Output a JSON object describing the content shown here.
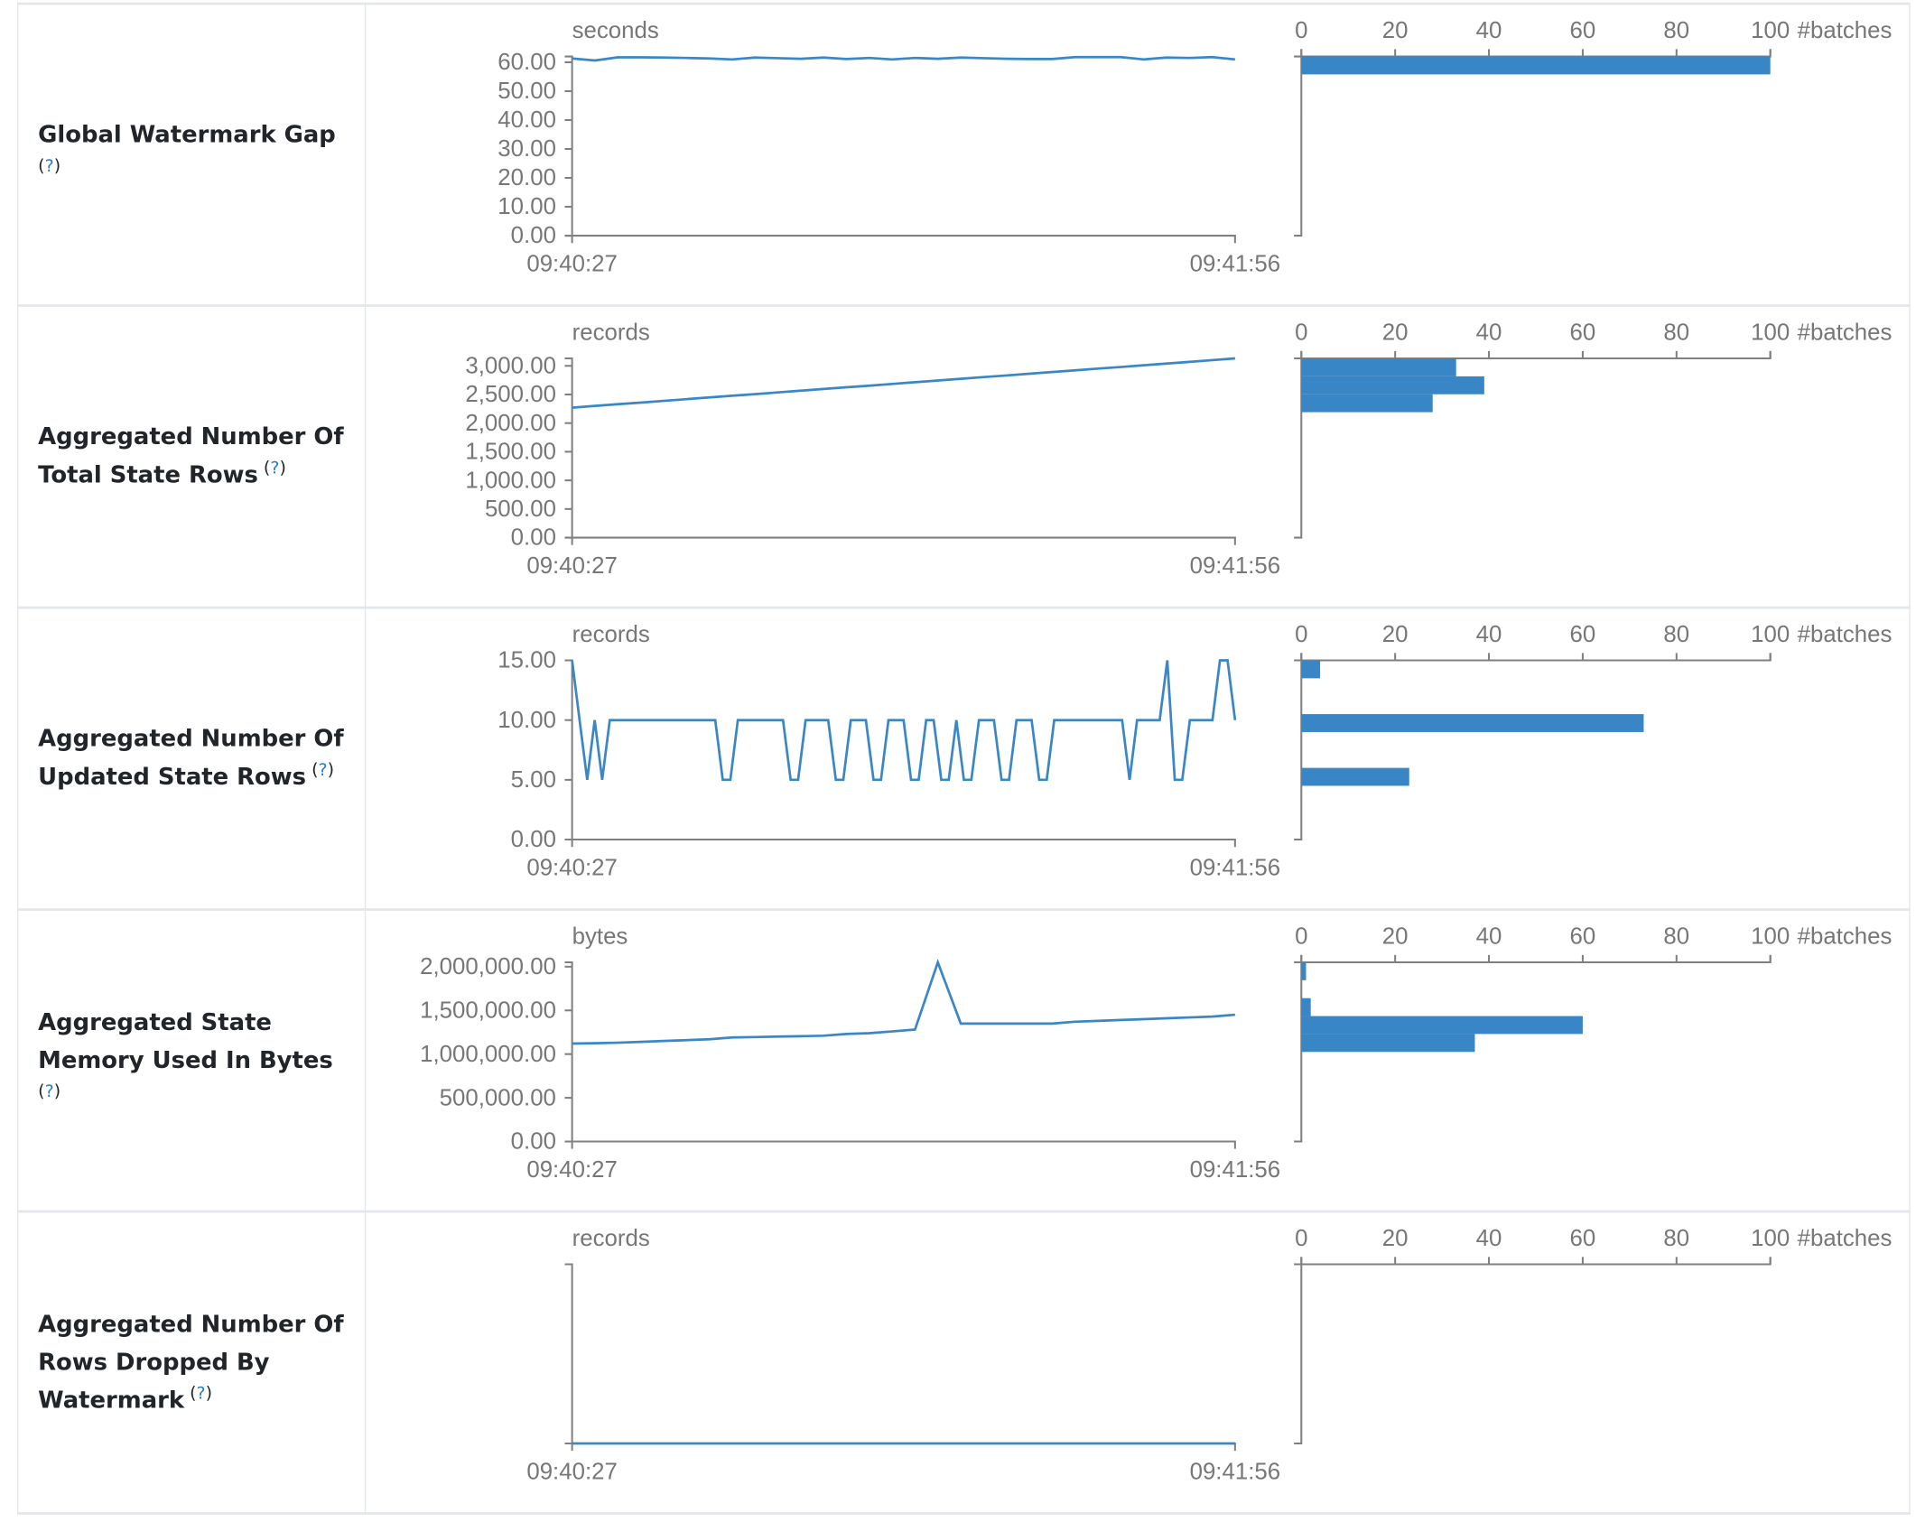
{
  "colors": {
    "line": "#3a87c8",
    "bar": "#3886c6",
    "axis": "#808080",
    "text": "#777777",
    "help": "#2a7ec4"
  },
  "rows": [
    {
      "title": "Global Watermark Gap",
      "help": "?"
    },
    {
      "title": "Aggregated Number Of Total State Rows",
      "help": "?"
    },
    {
      "title": "Aggregated Number Of Updated State Rows",
      "help": "?"
    },
    {
      "title": "Aggregated State Memory Used In Bytes",
      "help": "?"
    },
    {
      "title": "Aggregated Number Of Rows Dropped By Watermark",
      "help": "?"
    }
  ],
  "chart_data": [
    {
      "type": "line",
      "ylabel": "seconds",
      "x_tick_labels": [
        "09:40:27",
        "09:41:56"
      ],
      "ylim": [
        0,
        62
      ],
      "y_ticks": [
        0,
        10,
        20,
        30,
        40,
        50,
        60
      ],
      "y_tick_labels": [
        "0.00",
        "10.00",
        "20.00",
        "30.00",
        "40.00",
        "50.00",
        "60.00"
      ],
      "values": [
        61.3,
        60.6,
        61.7,
        61.7,
        61.6,
        61.5,
        61.3,
        61.0,
        61.6,
        61.4,
        61.2,
        61.6,
        61.1,
        61.5,
        61.0,
        61.5,
        61.2,
        61.6,
        61.4,
        61.2,
        61.1,
        61.1,
        61.8,
        61.8,
        61.8,
        61.0,
        61.6,
        61.5,
        61.8,
        61.0
      ]
    },
    {
      "type": "histogram",
      "xlabel": "#batches",
      "xlim": [
        0,
        100
      ],
      "x_ticks": [
        0,
        20,
        40,
        60,
        80,
        100
      ],
      "x_tick_labels": [
        "0",
        "20",
        "40",
        "60",
        "80",
        "100"
      ],
      "ylim": [
        0,
        62
      ],
      "bin_counts_from_top": [
        100,
        0,
        0,
        0,
        0,
        0,
        0,
        0,
        0,
        0
      ]
    },
    {
      "type": "line",
      "ylabel": "records",
      "x_tick_labels": [
        "09:40:27",
        "09:41:56"
      ],
      "ylim": [
        0,
        3130
      ],
      "y_ticks": [
        0,
        500,
        1000,
        1500,
        2000,
        2500,
        3000
      ],
      "y_tick_labels": [
        "0.00",
        "500.00",
        "1,000.00",
        "1,500.00",
        "2,000.00",
        "2,500.00",
        "3,000.00"
      ],
      "values": [
        2270,
        2300,
        2330,
        2359,
        2389,
        2418,
        2448,
        2478,
        2507,
        2537,
        2567,
        2596,
        2626,
        2655,
        2685,
        2715,
        2744,
        2774,
        2804,
        2833,
        2863,
        2893,
        2922,
        2952,
        2981,
        3011,
        3041,
        3070,
        3100,
        3130
      ]
    },
    {
      "type": "histogram",
      "xlabel": "#batches",
      "xlim": [
        0,
        100
      ],
      "x_ticks": [
        0,
        20,
        40,
        60,
        80,
        100
      ],
      "x_tick_labels": [
        "0",
        "20",
        "40",
        "60",
        "80",
        "100"
      ],
      "ylim": [
        0,
        3130
      ],
      "bin_counts_from_top": [
        33,
        39,
        28,
        0,
        0,
        0,
        0,
        0,
        0,
        0
      ]
    },
    {
      "type": "line",
      "ylabel": "records",
      "x_tick_labels": [
        "09:40:27",
        "09:41:56"
      ],
      "ylim": [
        0,
        15
      ],
      "y_ticks": [
        0,
        5,
        10,
        15
      ],
      "y_tick_labels": [
        "0.00",
        "5.00",
        "10.00",
        "15.00"
      ],
      "values": [
        15,
        10,
        5,
        10,
        5,
        10,
        10,
        10,
        10,
        10,
        10,
        10,
        10,
        10,
        10,
        10,
        10,
        10,
        10,
        10,
        5,
        5,
        10,
        10,
        10,
        10,
        10,
        10,
        10,
        5,
        5,
        10,
        10,
        10,
        10,
        5,
        5,
        10,
        10,
        10,
        5,
        5,
        10,
        10,
        10,
        5,
        5,
        10,
        10,
        5,
        5,
        10,
        5,
        5,
        10,
        10,
        10,
        5,
        5,
        10,
        10,
        10,
        5,
        5,
        10,
        10,
        10,
        10,
        10,
        10,
        10,
        10,
        10,
        10,
        5,
        10,
        10,
        10,
        10,
        15,
        5,
        5,
        10,
        10,
        10,
        10,
        15,
        15,
        10
      ]
    },
    {
      "type": "histogram",
      "xlabel": "#batches",
      "xlim": [
        0,
        100
      ],
      "x_ticks": [
        0,
        20,
        40,
        60,
        80,
        100
      ],
      "x_tick_labels": [
        "0",
        "20",
        "40",
        "60",
        "80",
        "100"
      ],
      "ylim": [
        0,
        15
      ],
      "bin_counts_from_top": [
        4,
        0,
        0,
        73,
        0,
        0,
        23,
        0,
        0,
        0
      ]
    },
    {
      "type": "line",
      "ylabel": "bytes",
      "x_tick_labels": [
        "09:40:27",
        "09:41:56"
      ],
      "ylim": [
        0,
        2050000
      ],
      "y_ticks": [
        0,
        500000,
        1000000,
        1500000,
        2000000
      ],
      "y_tick_labels": [
        "0.00",
        "500,000.00",
        "1,000,000.00",
        "1,500,000.00",
        "2,000,000.00"
      ],
      "values": [
        1120000,
        1125000,
        1130000,
        1140000,
        1150000,
        1160000,
        1170000,
        1190000,
        1195000,
        1200000,
        1205000,
        1210000,
        1230000,
        1240000,
        1260000,
        1280000,
        2050000,
        1350000,
        1350000,
        1350000,
        1350000,
        1350000,
        1370000,
        1380000,
        1390000,
        1400000,
        1410000,
        1420000,
        1430000,
        1450000
      ]
    },
    {
      "type": "histogram",
      "xlabel": "#batches",
      "xlim": [
        0,
        100
      ],
      "x_ticks": [
        0,
        20,
        40,
        60,
        80,
        100
      ],
      "x_tick_labels": [
        "0",
        "20",
        "40",
        "60",
        "80",
        "100"
      ],
      "ylim": [
        0,
        2050000
      ],
      "bin_counts_from_top": [
        1,
        0,
        2,
        60,
        37,
        0,
        0,
        0,
        0,
        0
      ]
    },
    {
      "type": "line",
      "ylabel": "records",
      "x_tick_labels": [
        "09:40:27",
        "09:41:56"
      ],
      "ylim": [
        0,
        1
      ],
      "y_ticks": [],
      "y_tick_labels": [],
      "values": [
        0,
        0,
        0,
        0,
        0,
        0,
        0,
        0,
        0,
        0
      ]
    },
    {
      "type": "histogram",
      "xlabel": "#batches",
      "xlim": [
        0,
        100
      ],
      "x_ticks": [
        0,
        20,
        40,
        60,
        80,
        100
      ],
      "x_tick_labels": [
        "0",
        "20",
        "40",
        "60",
        "80",
        "100"
      ],
      "ylim": [
        0,
        1
      ],
      "bin_counts_from_top": [
        0,
        0,
        0,
        0,
        0,
        0,
        0,
        0,
        0,
        0
      ]
    }
  ]
}
